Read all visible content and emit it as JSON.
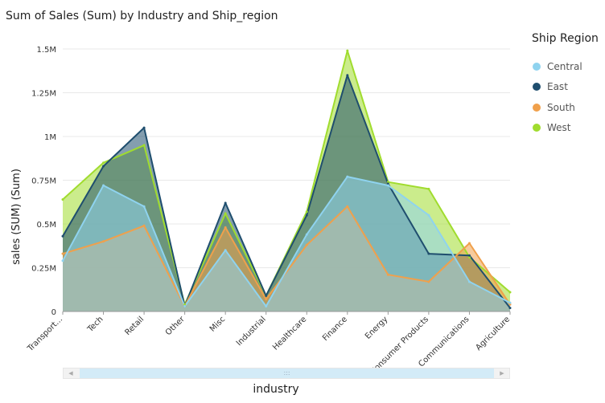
{
  "chart_data": {
    "type": "area",
    "title": "Sum of Sales (Sum) by Industry and Ship_region",
    "xlabel": "industry",
    "ylabel": "sales (SUM) (Sum)",
    "ylim": [
      0,
      1500000
    ],
    "yticks": [
      0,
      250000,
      500000,
      750000,
      1000000,
      1250000,
      1500000
    ],
    "ytick_labels": [
      "0",
      "0.25M",
      "0.5M",
      "0.75M",
      "1M",
      "1.25M",
      "1.5M"
    ],
    "grid": true,
    "legend_position": "right",
    "legend_title": "Ship Region",
    "categories": [
      "Transport...",
      "Tech",
      "Retail",
      "Other",
      "Misc",
      "Industrial",
      "Healthcare",
      "Finance",
      "Energy",
      "Consumer Products",
      "Communications",
      "Agriculture"
    ],
    "series": [
      {
        "name": "West",
        "color": "#a0dc2e",
        "values": [
          640000,
          850000,
          950000,
          40000,
          560000,
          90000,
          570000,
          1490000,
          740000,
          700000,
          310000,
          110000
        ]
      },
      {
        "name": "East",
        "color": "#1f4e6e",
        "values": [
          430000,
          830000,
          1050000,
          30000,
          620000,
          90000,
          550000,
          1350000,
          730000,
          330000,
          320000,
          20000
        ]
      },
      {
        "name": "South",
        "color": "#f0a04b",
        "values": [
          330000,
          400000,
          490000,
          30000,
          480000,
          70000,
          380000,
          600000,
          210000,
          170000,
          390000,
          40000
        ]
      },
      {
        "name": "Central",
        "color": "#8fd3ef",
        "values": [
          290000,
          720000,
          600000,
          30000,
          350000,
          30000,
          440000,
          770000,
          720000,
          550000,
          170000,
          50000
        ]
      }
    ]
  },
  "scrollbar": {
    "grip": ":::"
  }
}
